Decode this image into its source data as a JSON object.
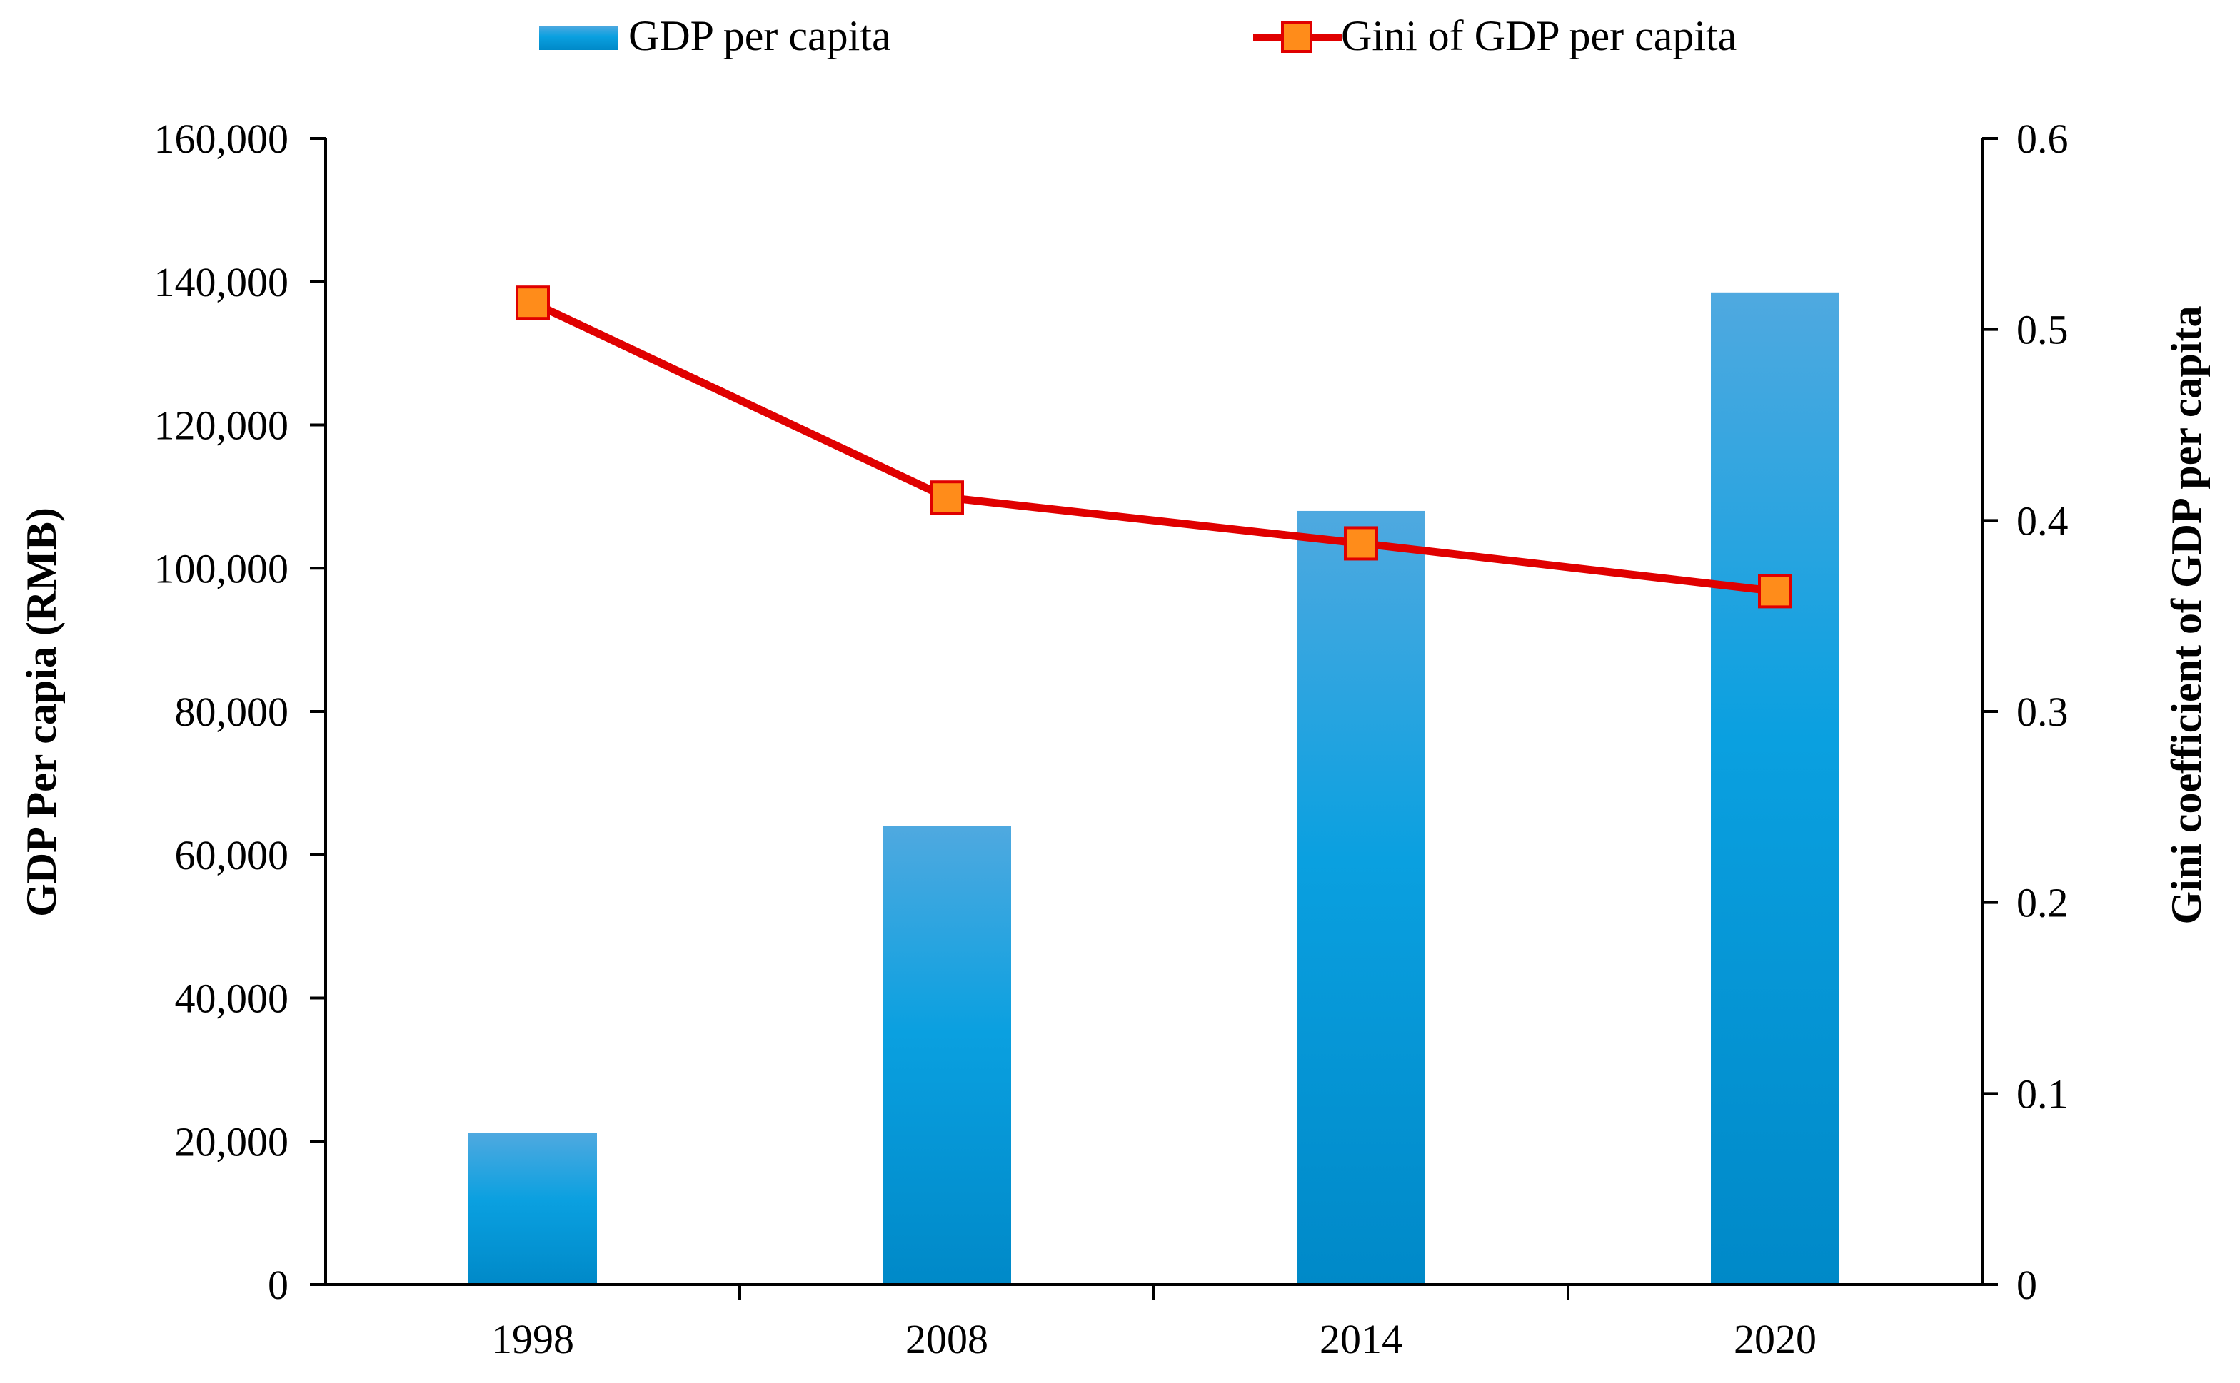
{
  "chart_data": {
    "type": "bar",
    "categories": [
      "1998",
      "2008",
      "2014",
      "2020"
    ],
    "series": [
      {
        "name": "GDP per capita",
        "type": "bar",
        "axis": "left",
        "values": [
          21200,
          64000,
          108000,
          138500
        ],
        "color": "#0098DA"
      },
      {
        "name": "Gini of GDP per capita",
        "type": "line",
        "axis": "right",
        "values": [
          0.514,
          0.412,
          0.388,
          0.363
        ],
        "color": "#E00000",
        "marker_color": "#FF8C1A"
      }
    ],
    "ylabel": "GDP Per capia (RMB)",
    "y2label": "Gini  coefficient of GDP per capita",
    "ylim": [
      0,
      160000
    ],
    "y2lim": [
      0,
      0.6
    ],
    "yticks": [
      "0",
      "20,000",
      "40,000",
      "60,000",
      "80,000",
      "100,000",
      "120,000",
      "140,000",
      "160,000"
    ],
    "y2ticks": [
      "0",
      "0.1",
      "0.2",
      "0.3",
      "0.4",
      "0.5",
      "0.6"
    ],
    "grid": false,
    "legend_position": "top"
  }
}
